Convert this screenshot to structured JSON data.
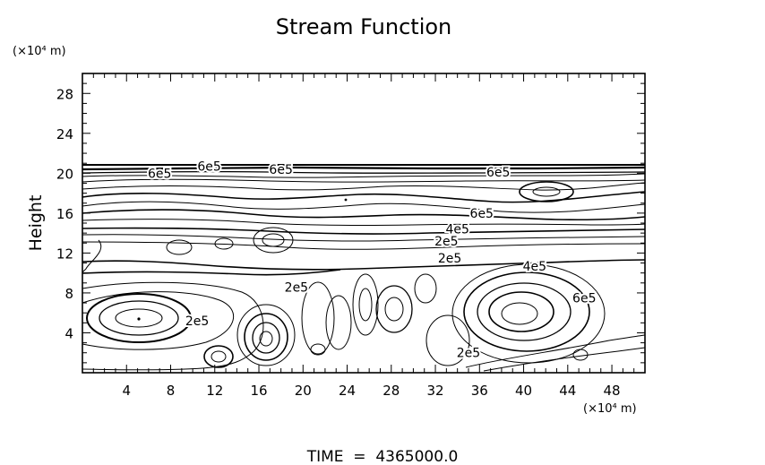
{
  "chart_data": {
    "type": "contour",
    "title": "Stream Function",
    "ylabel": "Height",
    "y_unit": "(×10⁴ m)",
    "x_unit": "(×10⁴ m)",
    "xlim": [
      0,
      51
    ],
    "ylim": [
      0,
      30
    ],
    "x_ticks": [
      "4",
      "8",
      "12",
      "16",
      "20",
      "24",
      "28",
      "32",
      "36",
      "40",
      "44",
      "48"
    ],
    "y_ticks": [
      "4",
      "8",
      "12",
      "16",
      "20",
      "24",
      "28"
    ],
    "x_tick_values": [
      4,
      8,
      12,
      16,
      20,
      24,
      28,
      32,
      36,
      40,
      44,
      48
    ],
    "y_tick_values": [
      4,
      8,
      12,
      16,
      20,
      24,
      28
    ],
    "contour_labels": [
      {
        "text": "6e5",
        "x": 7,
        "y": 20.0
      },
      {
        "text": "6e5",
        "x": 11.5,
        "y": 20.7
      },
      {
        "text": "6e5",
        "x": 18,
        "y": 20.4
      },
      {
        "text": "6e5",
        "x": 37.7,
        "y": 20.1
      },
      {
        "text": "6e5",
        "x": 36.2,
        "y": 16.0
      },
      {
        "text": "4e5",
        "x": 34.0,
        "y": 14.4
      },
      {
        "text": "2e5",
        "x": 33.0,
        "y": 13.2
      },
      {
        "text": "2e5",
        "x": 33.3,
        "y": 11.5
      },
      {
        "text": "4e5",
        "x": 41.0,
        "y": 10.7
      },
      {
        "text": "2e5",
        "x": 19.4,
        "y": 8.6
      },
      {
        "text": "6e5",
        "x": 45.5,
        "y": 7.5
      },
      {
        "text": "2e5",
        "x": 10.4,
        "y": 5.2
      },
      {
        "text": "2e5",
        "x": 35.0,
        "y": 2.0
      }
    ],
    "grid": false,
    "legend": "none"
  },
  "footer": "TIME  =  4365000.0"
}
